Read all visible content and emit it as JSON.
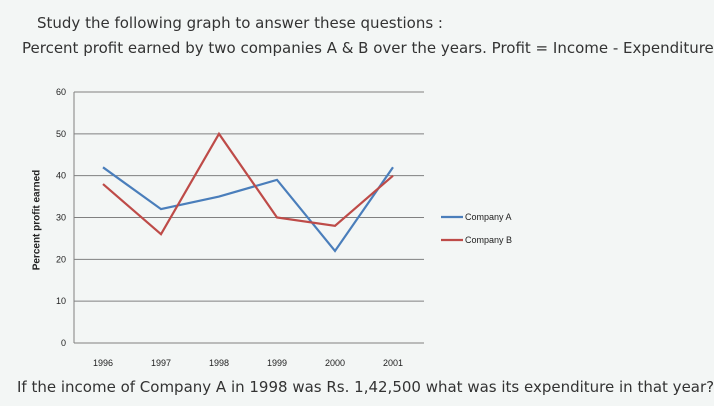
{
  "header": {
    "line1": "Study the following graph to answer these questions :",
    "line2": "Percent profit earned by two companies A & B over the years. Profit = Income - Expenditure"
  },
  "question": "If the income of Company A in 1998 was Rs. 1,42,500 what was its expenditure in that year?",
  "colors": {
    "company_a": "#4a7ebb",
    "company_b": "#be4b48",
    "grid": "#808080"
  },
  "chart_data": {
    "type": "line",
    "title": "",
    "xlabel": "",
    "ylabel": "Percent profit earned",
    "categories": [
      "1996",
      "1997",
      "1998",
      "1999",
      "2000",
      "2001"
    ],
    "yticks": [
      0,
      10,
      20,
      30,
      40,
      50,
      60
    ],
    "ylim": [
      0,
      60
    ],
    "grid": true,
    "legend_position": "right",
    "series": [
      {
        "name": "Company A",
        "color": "#4a7ebb",
        "values": [
          42,
          32,
          35,
          39,
          22,
          42
        ]
      },
      {
        "name": "Company B",
        "color": "#be4b48",
        "values": [
          38,
          26,
          50,
          30,
          28,
          40
        ]
      }
    ]
  }
}
